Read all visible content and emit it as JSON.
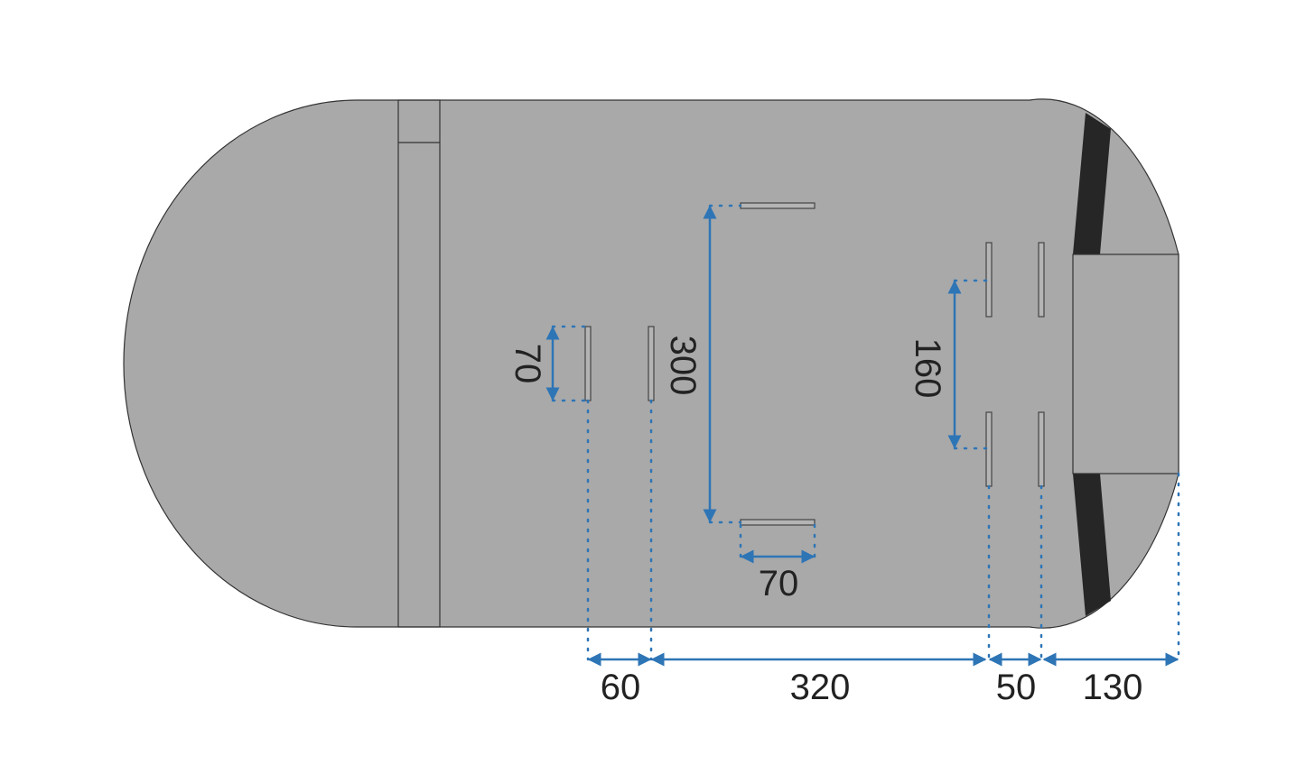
{
  "colors": {
    "body": "#a9a9a9",
    "outline": "#333333",
    "dark_band": "#262626",
    "dimension": "#2e75b6",
    "text": "#222222"
  },
  "dimensions": {
    "left_slot_height": "70",
    "center_slot_spacing": "300",
    "center_slot_width": "70",
    "right_slot_spacing": "160",
    "bottom": [
      "60",
      "320",
      "50",
      "130"
    ]
  }
}
